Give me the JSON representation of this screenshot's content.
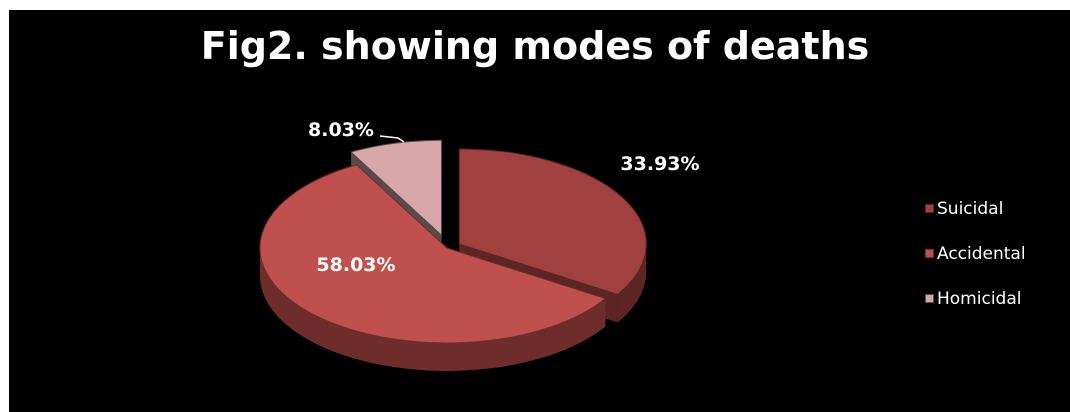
{
  "chart_data": {
    "type": "pie",
    "title": "Fig2. showing modes of deaths",
    "categories": [
      "Suicidal",
      "Accidental",
      "Homicidal"
    ],
    "values": [
      33.93,
      58.03,
      8.03
    ],
    "data_labels": [
      "33.93%",
      "58.03%",
      "8.03%"
    ],
    "colors": [
      "#a0403f",
      "#c0504d",
      "#d8a8a8"
    ],
    "side_colors": [
      "#5c2524",
      "#6e2d2b",
      "#5a4a4a"
    ],
    "legend_placement": "right",
    "exploded": true,
    "three_d": true
  }
}
